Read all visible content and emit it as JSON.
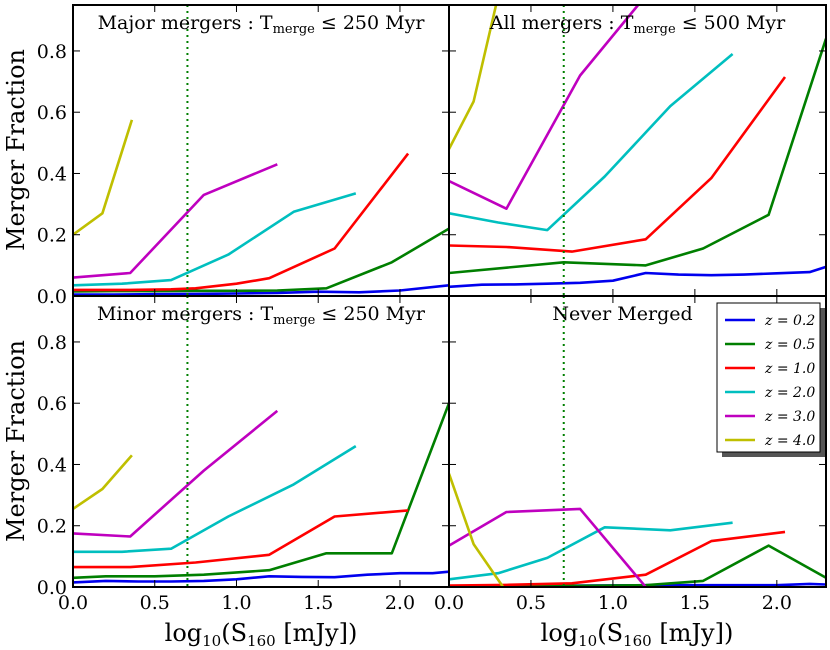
{
  "chart_data": {
    "type": "line",
    "layout": "2x2 panels, shared axes",
    "xlabel": "log10(S160 [mJy])",
    "ylabel": "Merger Fraction",
    "xlim": [
      0.0,
      2.3
    ],
    "ylim": [
      0.0,
      0.95
    ],
    "xticks": [
      0.0,
      0.5,
      1.0,
      1.5,
      2.0
    ],
    "xtick_labels": [
      "0.0",
      "0.5",
      "1.0",
      "1.5",
      "2.0"
    ],
    "yticks": [
      0.0,
      0.2,
      0.4,
      0.6,
      0.8
    ],
    "ytick_labels": [
      "0.0",
      "0.2",
      "0.4",
      "0.6",
      "0.8"
    ],
    "vline_x": 0.7,
    "legend": {
      "placement": "upper-right of bottom-right panel",
      "entries": [
        {
          "label": "z = 0.2",
          "color": "#0000ee"
        },
        {
          "label": "z = 0.5",
          "color": "#007f00"
        },
        {
          "label": "z = 1.0",
          "color": "#ff0000"
        },
        {
          "label": "z = 2.0",
          "color": "#00bfbf"
        },
        {
          "label": "z = 3.0",
          "color": "#bf00bf"
        },
        {
          "label": "z = 4.0",
          "color": "#bfbf00"
        }
      ]
    },
    "panels": [
      {
        "title_prefix": "Major mergers : T",
        "title_sub": "merge",
        "title_suffix": " ≤ 250 Myr",
        "series": [
          {
            "name": "z = 0.2",
            "color": "#0000ee",
            "x": [
              0.0,
              0.25,
              0.5,
              0.75,
              1.0,
              1.25,
              1.5,
              1.75,
              2.0,
              2.3
            ],
            "y": [
              0.005,
              0.005,
              0.006,
              0.007,
              0.008,
              0.01,
              0.014,
              0.012,
              0.018,
              0.035
            ]
          },
          {
            "name": "z = 0.5",
            "color": "#007f00",
            "x": [
              0.0,
              0.25,
              0.5,
              0.75,
              1.0,
              1.25,
              1.55,
              1.95,
              2.3
            ],
            "y": [
              0.015,
              0.016,
              0.016,
              0.017,
              0.017,
              0.018,
              0.025,
              0.11,
              0.22
            ]
          },
          {
            "name": "z = 1.0",
            "color": "#ff0000",
            "x": [
              0.0,
              0.35,
              0.6,
              0.75,
              1.0,
              1.2,
              1.6,
              2.05
            ],
            "y": [
              0.02,
              0.02,
              0.022,
              0.025,
              0.04,
              0.058,
              0.155,
              0.465
            ]
          },
          {
            "name": "z = 2.0",
            "color": "#00bfbf",
            "x": [
              0.0,
              0.3,
              0.6,
              0.95,
              1.35,
              1.73
            ],
            "y": [
              0.035,
              0.04,
              0.052,
              0.135,
              0.275,
              0.335
            ]
          },
          {
            "name": "z = 3.0",
            "color": "#bf00bf",
            "x": [
              0.0,
              0.35,
              0.8,
              1.25
            ],
            "y": [
              0.06,
              0.075,
              0.33,
              0.43
            ]
          },
          {
            "name": "z = 4.0",
            "color": "#bfbf00",
            "x": [
              0.0,
              0.18,
              0.36
            ],
            "y": [
              0.2,
              0.27,
              0.575
            ]
          }
        ]
      },
      {
        "title_prefix": "All mergers : T",
        "title_sub": "merge",
        "title_suffix": " ≤ 500 Myr",
        "series": [
          {
            "name": "z = 0.2",
            "color": "#0000ee",
            "x": [
              0.0,
              0.2,
              0.4,
              0.6,
              0.8,
              1.0,
              1.2,
              1.4,
              1.6,
              1.8,
              2.0,
              2.2,
              2.3
            ],
            "y": [
              0.03,
              0.037,
              0.038,
              0.04,
              0.043,
              0.05,
              0.075,
              0.07,
              0.068,
              0.07,
              0.074,
              0.078,
              0.095
            ]
          },
          {
            "name": "z = 0.5",
            "color": "#007f00",
            "x": [
              0.0,
              0.7,
              1.2,
              1.55,
              1.95,
              2.3
            ],
            "y": [
              0.075,
              0.11,
              0.1,
              0.155,
              0.265,
              0.84
            ]
          },
          {
            "name": "z = 1.0",
            "color": "#ff0000",
            "x": [
              0.0,
              0.35,
              0.75,
              1.2,
              1.6,
              2.05
            ],
            "y": [
              0.165,
              0.16,
              0.145,
              0.185,
              0.385,
              0.715
            ]
          },
          {
            "name": "z = 2.0",
            "color": "#00bfbf",
            "x": [
              0.0,
              0.3,
              0.6,
              0.95,
              1.35,
              1.73
            ],
            "y": [
              0.27,
              0.24,
              0.215,
              0.39,
              0.62,
              0.79
            ]
          },
          {
            "name": "z = 3.0",
            "color": "#bf00bf",
            "x": [
              0.0,
              0.35,
              0.8,
              1.2
            ],
            "y": [
              0.375,
              0.285,
              0.72,
              0.98
            ]
          },
          {
            "name": "z = 4.0",
            "color": "#bfbf00",
            "x": [
              0.0,
              0.15,
              0.3
            ],
            "y": [
              0.48,
              0.635,
              0.98
            ]
          }
        ]
      },
      {
        "title_prefix": "Minor mergers : T",
        "title_sub": "merge",
        "title_suffix": " ≤ 250 Myr",
        "series": [
          {
            "name": "z = 0.2",
            "color": "#0000ee",
            "x": [
              0.0,
              0.2,
              0.4,
              0.6,
              0.8,
              1.0,
              1.2,
              1.4,
              1.6,
              1.8,
              2.0,
              2.2,
              2.3
            ],
            "y": [
              0.015,
              0.02,
              0.018,
              0.018,
              0.02,
              0.025,
              0.035,
              0.033,
              0.032,
              0.04,
              0.045,
              0.045,
              0.05
            ]
          },
          {
            "name": "z = 0.5",
            "color": "#007f00",
            "x": [
              0.0,
              0.2,
              0.5,
              0.8,
              1.2,
              1.55,
              1.95,
              2.3
            ],
            "y": [
              0.03,
              0.035,
              0.035,
              0.04,
              0.055,
              0.11,
              0.11,
              0.6
            ]
          },
          {
            "name": "z = 1.0",
            "color": "#ff0000",
            "x": [
              0.0,
              0.35,
              0.75,
              1.2,
              1.6,
              2.05
            ],
            "y": [
              0.065,
              0.065,
              0.08,
              0.105,
              0.23,
              0.25
            ]
          },
          {
            "name": "z = 2.0",
            "color": "#00bfbf",
            "x": [
              0.0,
              0.3,
              0.6,
              0.95,
              1.35,
              1.73
            ],
            "y": [
              0.115,
              0.115,
              0.125,
              0.23,
              0.335,
              0.46
            ]
          },
          {
            "name": "z = 3.0",
            "color": "#bf00bf",
            "x": [
              0.0,
              0.35,
              0.8,
              1.25
            ],
            "y": [
              0.175,
              0.165,
              0.38,
              0.575
            ]
          },
          {
            "name": "z = 4.0",
            "color": "#bfbf00",
            "x": [
              0.0,
              0.18,
              0.36
            ],
            "y": [
              0.255,
              0.32,
              0.43
            ]
          }
        ]
      },
      {
        "title_prefix": "Never Merged",
        "title_sub": "",
        "title_suffix": "",
        "series": [
          {
            "name": "z = 0.2",
            "color": "#0000ee",
            "x": [
              0.0,
              0.4,
              0.8,
              1.2,
              1.6,
              2.0,
              2.2,
              2.3
            ],
            "y": [
              0.003,
              0.004,
              0.005,
              0.006,
              0.006,
              0.006,
              0.01,
              0.008
            ]
          },
          {
            "name": "z = 0.5",
            "color": "#007f00",
            "x": [
              0.0,
              0.4,
              0.8,
              1.2,
              1.55,
              1.95,
              2.3
            ],
            "y": [
              0.002,
              0.003,
              0.004,
              0.006,
              0.02,
              0.135,
              0.03
            ]
          },
          {
            "name": "z = 1.0",
            "color": "#ff0000",
            "x": [
              0.0,
              0.35,
              0.75,
              1.2,
              1.6,
              2.05
            ],
            "y": [
              0.005,
              0.007,
              0.012,
              0.04,
              0.15,
              0.18
            ]
          },
          {
            "name": "z = 2.0",
            "color": "#00bfbf",
            "x": [
              0.0,
              0.3,
              0.6,
              0.95,
              1.35,
              1.73
            ],
            "y": [
              0.025,
              0.045,
              0.095,
              0.195,
              0.185,
              0.21
            ]
          },
          {
            "name": "z = 3.0",
            "color": "#bf00bf",
            "x": [
              0.0,
              0.35,
              0.8,
              1.2
            ],
            "y": [
              0.135,
              0.245,
              0.255,
              0.0
            ]
          },
          {
            "name": "z = 4.0",
            "color": "#bfbf00",
            "x": [
              0.0,
              0.15,
              0.33
            ],
            "y": [
              0.37,
              0.14,
              0.0
            ]
          }
        ]
      }
    ]
  }
}
